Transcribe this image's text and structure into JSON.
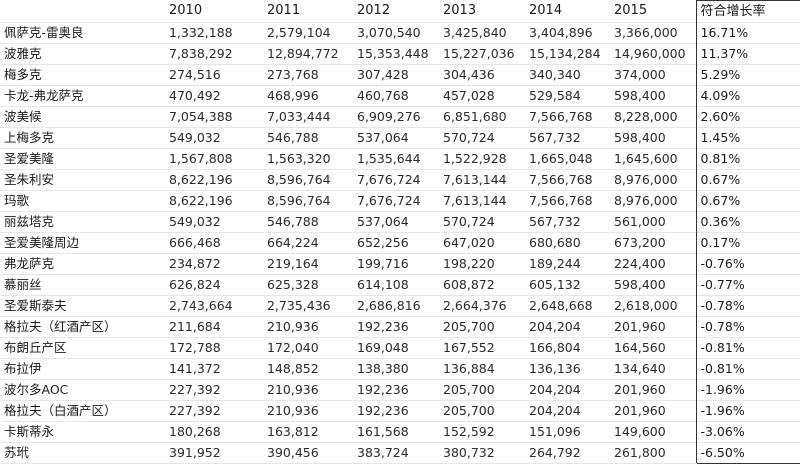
{
  "headers": [
    "",
    "2010",
    "2011",
    "2012",
    "2013",
    "2014",
    "2015",
    "符合增长率"
  ],
  "rows": [
    [
      "佩萨克-雷奥良",
      "1,332,188",
      "2,579,104",
      "3,070,540",
      "3,425,840",
      "3,404,896",
      "3,366,000",
      "16.71%"
    ],
    [
      "波雅克",
      "7,838,292",
      "12,894,772",
      "15,353,448",
      "15,227,036",
      "15,134,284",
      "14,960,000",
      "11.37%"
    ],
    [
      "梅多克",
      "274,516",
      "273,768",
      "307,428",
      "304,436",
      "340,340",
      "374,000",
      "5.29%"
    ],
    [
      "卡龙-弗龙萨克",
      "470,492",
      "468,996",
      "460,768",
      "457,028",
      "529,584",
      "598,400",
      "4.09%"
    ],
    [
      "波美候",
      "7,054,388",
      "7,033,444",
      "6,909,276",
      "6,851,680",
      "7,566,768",
      "8,228,000",
      "2.60%"
    ],
    [
      "上梅多克",
      "549,032",
      "546,788",
      "537,064",
      "570,724",
      "567,732",
      "598,400",
      "1.45%"
    ],
    [
      "圣爱美隆",
      "1,567,808",
      "1,563,320",
      "1,535,644",
      "1,522,928",
      "1,665,048",
      "1,645,600",
      "0.81%"
    ],
    [
      "圣朱利安",
      "8,622,196",
      "8,596,764",
      "7,676,724",
      "7,613,144",
      "7,566,768",
      "8,976,000",
      "0.67%"
    ],
    [
      "玛歌",
      "8,622,196",
      "8,596,764",
      "7,676,724",
      "7,613,144",
      "7,566,768",
      "8,976,000",
      "0.67%"
    ],
    [
      "丽兹塔克",
      "549,032",
      "546,788",
      "537,064",
      "570,724",
      "567,732",
      "561,000",
      "0.36%"
    ],
    [
      "圣爱美隆周边",
      "666,468",
      "664,224",
      "652,256",
      "647,020",
      "680,680",
      "673,200",
      "0.17%"
    ],
    [
      "弗龙萨克",
      "234,872",
      "219,164",
      "199,716",
      "198,220",
      "189,244",
      "224,400",
      "-0.76%"
    ],
    [
      "慕丽丝",
      "626,824",
      "625,328",
      "614,108",
      "608,872",
      "605,132",
      "598,400",
      "-0.77%"
    ],
    [
      "圣爱斯泰夫",
      "2,743,664",
      "2,735,436",
      "2,686,816",
      "2,664,376",
      "2,648,668",
      "2,618,000",
      "-0.78%"
    ],
    [
      "格拉夫（红酒产区）",
      "211,684",
      "210,936",
      "192,236",
      "205,700",
      "204,204",
      "201,960",
      "-0.78%"
    ],
    [
      "布朗丘产区",
      "172,788",
      "172,040",
      "169,048",
      "167,552",
      "166,804",
      "164,560",
      "-0.81%"
    ],
    [
      "布拉伊",
      "141,372",
      "148,852",
      "138,380",
      "136,884",
      "136,136",
      "134,640",
      "-0.81%"
    ],
    [
      "波尔多AOC",
      "227,392",
      "210,936",
      "192,236",
      "205,700",
      "204,204",
      "201,960",
      "-1.96%"
    ],
    [
      "格拉夫（白酒产区）",
      "227,392",
      "210,936",
      "192,236",
      "205,700",
      "204,204",
      "201,960",
      "-1.96%"
    ],
    [
      "卡斯蒂永",
      "180,268",
      "163,812",
      "161,568",
      "152,592",
      "151,096",
      "149,600",
      "-3.06%"
    ],
    [
      "苏玳",
      "391,952",
      "390,456",
      "383,724",
      "380,732",
      "264,792",
      "261,800",
      "-6.50%"
    ]
  ]
}
